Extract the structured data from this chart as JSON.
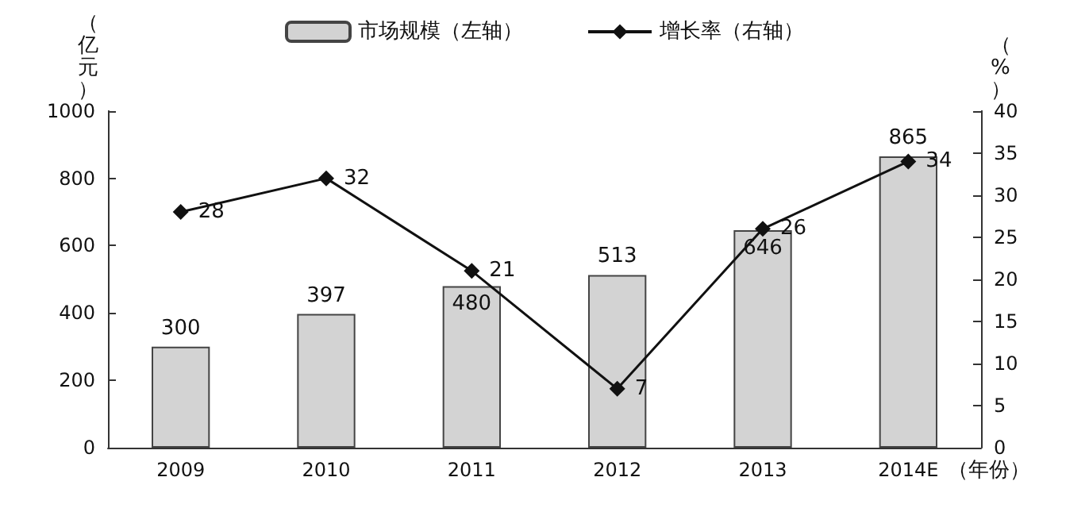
{
  "chart_data": {
    "type": "bar",
    "categories": [
      "2009",
      "2010",
      "2011",
      "2012",
      "2013",
      "2014E"
    ],
    "series": [
      {
        "name": "市场规模（左轴）",
        "color": "#d3d3d3",
        "values": [
          300,
          397,
          480,
          513,
          646,
          865
        ]
      },
      {
        "name": "增长率（右轴）",
        "type": "line",
        "axis": "y2",
        "color": "#111111",
        "marker": "diamond",
        "values": [
          28,
          32,
          21,
          7,
          26,
          34
        ]
      }
    ],
    "xlabel": "（年份）",
    "ylabel": "（亿元）",
    "y2label": "（%）",
    "ylim": [
      0,
      1000
    ],
    "yticks": [
      0,
      200,
      400,
      600,
      800,
      1000
    ],
    "y2lim": [
      0,
      40
    ],
    "y2ticks": [
      0,
      5,
      10,
      15,
      20,
      25,
      30,
      35,
      40
    ],
    "data_labels": true,
    "legend": "top",
    "grid": false
  }
}
